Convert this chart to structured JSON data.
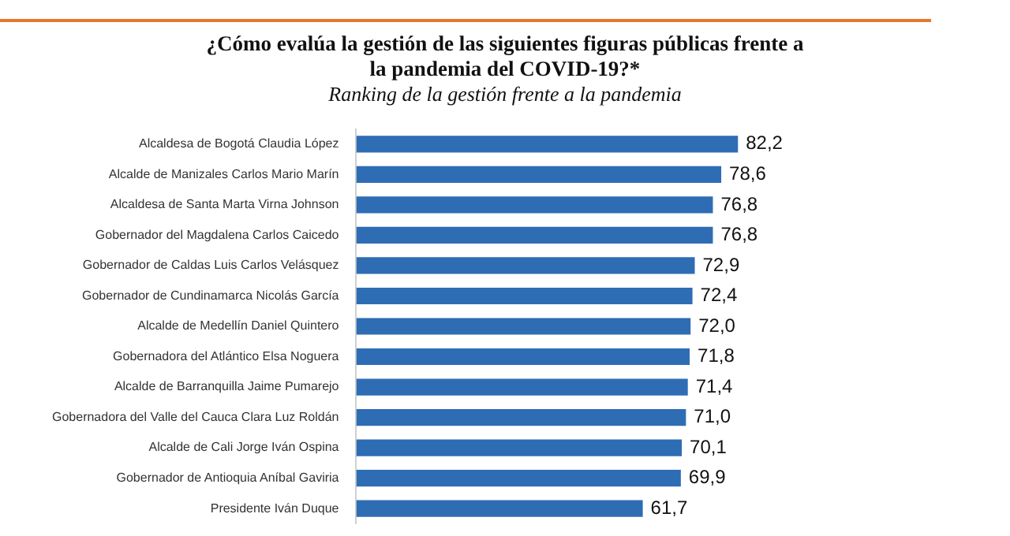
{
  "chart_data": {
    "type": "bar",
    "orientation": "horizontal",
    "title": "¿Cómo evalúa la gestión de las siguientes figuras públicas frente a la pandemia del COVID-19?*",
    "subtitle": "Ranking de la gestión frente a la pandemia",
    "categories": [
      "Alcaldesa de Bogotá Claudia López",
      "Alcalde de Manizales Carlos Mario Marín",
      "Alcaldesa de Santa Marta Virna Johnson",
      "Gobernador del Magdalena Carlos Caicedo",
      "Gobernador de Caldas Luis Carlos Velásquez",
      "Gobernador de Cundinamarca Nicolás García",
      "Alcalde de Medellín Daniel Quintero",
      "Gobernadora del Atlántico Elsa Noguera",
      "Alcalde de Barranquilla Jaime Pumarejo",
      "Gobernadora del Valle del Cauca Clara Luz Roldán",
      "Alcalde de Cali Jorge Iván Ospina",
      "Gobernador de Antioquia Aníbal Gaviria",
      "Presidente Iván Duque"
    ],
    "values": [
      82.2,
      78.6,
      76.8,
      76.8,
      72.9,
      72.4,
      72.0,
      71.8,
      71.4,
      71.0,
      70.1,
      69.9,
      61.7
    ],
    "value_labels": [
      "82,2",
      "78,6",
      "76,8",
      "76,8",
      "72,9",
      "72,4",
      "72,0",
      "71,8",
      "71,4",
      "71,0",
      "70,1",
      "69,9",
      "61,7"
    ],
    "color": "#2e6db4",
    "legend": false,
    "tick_labels": "y"
  }
}
